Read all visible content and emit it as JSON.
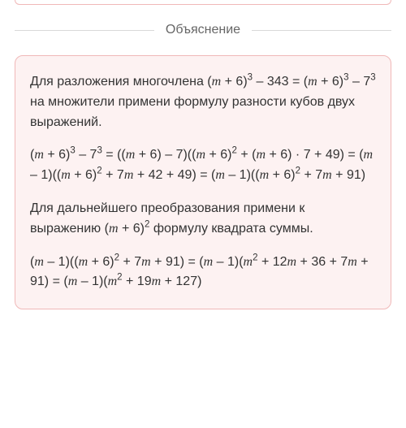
{
  "colors": {
    "page_bg": "#ffffff",
    "card_bg": "#fdf2f2",
    "card_border": "#f0b8b8",
    "divider": "#d9d9d9",
    "divider_text": "#666666",
    "body_text": "#333333"
  },
  "typography": {
    "body_fontsize": 16,
    "line_height": 1.55,
    "math_var_font": "Georgia, Times New Roman, serif"
  },
  "section_title": "Объяснение",
  "paragraphs": [
    {
      "segments": [
        {
          "t": "text",
          "v": "Для разложения многочлена ("
        },
        {
          "t": "var",
          "v": "m"
        },
        {
          "t": "text",
          "v": " + 6)"
        },
        {
          "t": "sup",
          "v": "3"
        },
        {
          "t": "text",
          "v": " – 343 = ("
        },
        {
          "t": "var",
          "v": "m"
        },
        {
          "t": "text",
          "v": " + 6)"
        },
        {
          "t": "sup",
          "v": "3"
        },
        {
          "t": "text",
          "v": " – 7"
        },
        {
          "t": "sup",
          "v": "3"
        },
        {
          "t": "text",
          "v": " на множители примени формулу разности кубов двух выражений."
        }
      ]
    },
    {
      "segments": [
        {
          "t": "text",
          "v": "("
        },
        {
          "t": "var",
          "v": "m"
        },
        {
          "t": "text",
          "v": " + 6)"
        },
        {
          "t": "sup",
          "v": "3"
        },
        {
          "t": "text",
          "v": " – 7"
        },
        {
          "t": "sup",
          "v": "3"
        },
        {
          "t": "text",
          "v": " = (("
        },
        {
          "t": "var",
          "v": "m"
        },
        {
          "t": "text",
          "v": " + 6) – 7)(("
        },
        {
          "t": "var",
          "v": "m"
        },
        {
          "t": "text",
          "v": " + 6)"
        },
        {
          "t": "sup",
          "v": "2"
        },
        {
          "t": "text",
          "v": " + ("
        },
        {
          "t": "var",
          "v": "m"
        },
        {
          "t": "text",
          "v": " + 6) · 7 + 49) = ("
        },
        {
          "t": "var",
          "v": "m"
        },
        {
          "t": "text",
          "v": " – 1)(("
        },
        {
          "t": "var",
          "v": "m"
        },
        {
          "t": "text",
          "v": " + 6)"
        },
        {
          "t": "sup",
          "v": "2"
        },
        {
          "t": "text",
          "v": " + 7"
        },
        {
          "t": "var",
          "v": "m"
        },
        {
          "t": "text",
          "v": " + 42 + 49) = ("
        },
        {
          "t": "var",
          "v": "m"
        },
        {
          "t": "text",
          "v": " – 1)(("
        },
        {
          "t": "var",
          "v": "m"
        },
        {
          "t": "text",
          "v": " + 6)"
        },
        {
          "t": "sup",
          "v": "2"
        },
        {
          "t": "text",
          "v": " + 7"
        },
        {
          "t": "var",
          "v": "m"
        },
        {
          "t": "text",
          "v": " + 91)"
        }
      ]
    },
    {
      "segments": [
        {
          "t": "text",
          "v": "Для дальнейшего преобразования примени к выражению ("
        },
        {
          "t": "var",
          "v": "m"
        },
        {
          "t": "text",
          "v": " + 6)"
        },
        {
          "t": "sup",
          "v": "2"
        },
        {
          "t": "text",
          "v": " формулу квадрата суммы."
        }
      ]
    },
    {
      "segments": [
        {
          "t": "text",
          "v": "("
        },
        {
          "t": "var",
          "v": "m"
        },
        {
          "t": "text",
          "v": " – 1)(("
        },
        {
          "t": "var",
          "v": "m"
        },
        {
          "t": "text",
          "v": " + 6)"
        },
        {
          "t": "sup",
          "v": "2"
        },
        {
          "t": "text",
          "v": " + 7"
        },
        {
          "t": "var",
          "v": "m"
        },
        {
          "t": "text",
          "v": " + 91) = ("
        },
        {
          "t": "var",
          "v": "m"
        },
        {
          "t": "text",
          "v": " – 1)("
        },
        {
          "t": "var",
          "v": "m"
        },
        {
          "t": "sup",
          "v": "2"
        },
        {
          "t": "text",
          "v": " + 12"
        },
        {
          "t": "var",
          "v": "m"
        },
        {
          "t": "text",
          "v": " + 36 + 7"
        },
        {
          "t": "var",
          "v": "m"
        },
        {
          "t": "text",
          "v": " + 91) = ("
        },
        {
          "t": "var",
          "v": "m"
        },
        {
          "t": "text",
          "v": " – 1)("
        },
        {
          "t": "var",
          "v": "m"
        },
        {
          "t": "sup",
          "v": "2"
        },
        {
          "t": "text",
          "v": " + 19"
        },
        {
          "t": "var",
          "v": "m"
        },
        {
          "t": "text",
          "v": " + 127)"
        }
      ]
    }
  ]
}
